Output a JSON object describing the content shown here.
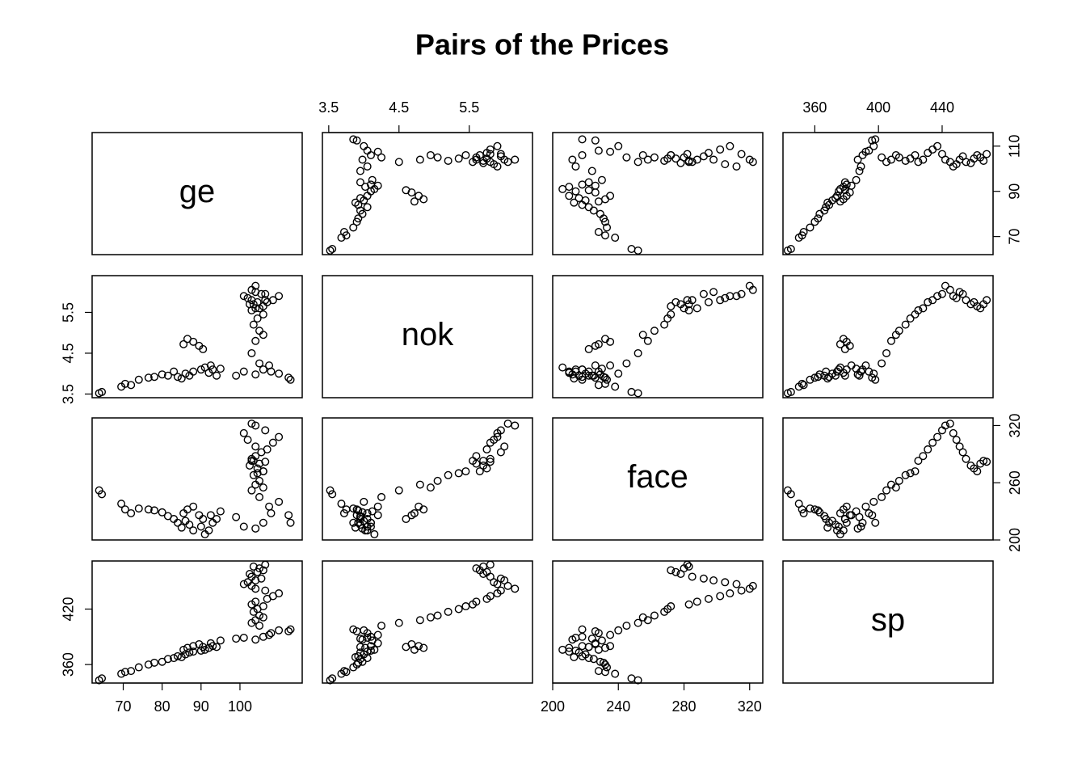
{
  "chart_data": {
    "type": "pairs",
    "title": "Pairs of the Prices",
    "variables": [
      {
        "name": "ge",
        "lim": [
          62,
          116
        ],
        "xticks": [
          70,
          80,
          90,
          100
        ],
        "yticks": [
          70,
          90,
          110
        ],
        "values": [
          63.8,
          64.5,
          69.5,
          70.5,
          72,
          74,
          76.5,
          78,
          80,
          81.5,
          83,
          84,
          85,
          86,
          87,
          88,
          85.5,
          86.5,
          88,
          89.5,
          90.5,
          90,
          91,
          92,
          93,
          94,
          92.5,
          95,
          99,
          101,
          104,
          106,
          107.5,
          108,
          112.5,
          113,
          110,
          105,
          103,
          104,
          106,
          105,
          103.5,
          104.5,
          106,
          103,
          104,
          107,
          108.5,
          110,
          106.5,
          104,
          103,
          101,
          102,
          104,
          105.5,
          103,
          102.5,
          104.5,
          106,
          105,
          103.5,
          106.5
        ]
      },
      {
        "name": "nok",
        "lim": [
          3.41,
          6.4
        ],
        "xticks": [
          3.5,
          4.5,
          5.5
        ],
        "yticks": [
          3.5,
          4.5,
          5.5
        ],
        "values": [
          3.52,
          3.55,
          3.68,
          3.75,
          3.72,
          3.85,
          3.9,
          3.92,
          3.98,
          3.95,
          4.05,
          3.92,
          3.88,
          4.0,
          3.95,
          4.05,
          4.72,
          4.85,
          4.78,
          4.68,
          4.6,
          4.1,
          4.15,
          4.02,
          4.1,
          3.95,
          4.2,
          4.12,
          3.95,
          4.05,
          3.98,
          4.1,
          4.2,
          4.05,
          3.9,
          3.85,
          4.0,
          4.25,
          4.5,
          4.8,
          4.95,
          5.05,
          5.2,
          5.35,
          5.45,
          5.55,
          5.6,
          5.75,
          5.8,
          5.9,
          5.95,
          6.15,
          6.05,
          5.9,
          5.85,
          6.0,
          5.95,
          5.8,
          5.7,
          5.75,
          5.65,
          5.6,
          5.7,
          5.8
        ]
      },
      {
        "name": "face",
        "lim": [
          200,
          328
        ],
        "xticks": [
          200,
          240,
          280,
          320
        ],
        "yticks": [
          200,
          260,
          320
        ],
        "values": [
          252,
          248,
          238,
          232,
          228,
          233,
          232,
          231,
          229,
          225,
          222,
          218,
          213,
          220,
          216,
          210,
          228,
          232,
          235,
          226,
          222,
          214,
          206,
          210,
          218,
          222,
          226,
          230,
          224,
          214,
          212,
          218,
          235,
          228,
          226,
          218,
          240,
          245,
          252,
          258,
          255,
          262,
          268,
          270,
          272,
          283,
          288,
          295,
          302,
          308,
          315,
          320,
          322,
          312,
          305,
          298,
          292,
          285,
          278,
          275,
          272,
          280,
          283,
          282
        ]
      },
      {
        "name": "sp",
        "lim": [
          340,
          472
        ],
        "xticks": [
          360,
          400,
          440
        ],
        "yticks": [
          360,
          420
        ],
        "values": [
          343,
          345,
          350,
          352,
          353,
          357,
          360,
          362,
          363,
          366,
          367,
          369,
          368,
          371,
          373,
          374,
          376,
          378,
          380,
          382,
          379,
          375,
          376,
          378,
          380,
          379,
          383,
          386,
          388,
          389,
          387,
          390,
          392,
          394,
          396,
          398,
          397,
          402,
          405,
          408,
          411,
          413,
          417,
          420,
          423,
          425,
          428,
          431,
          434,
          437,
          440,
          442,
          445,
          447,
          449,
          451,
          453,
          455,
          458,
          460,
          462,
          464,
          466,
          468
        ]
      }
    ]
  }
}
